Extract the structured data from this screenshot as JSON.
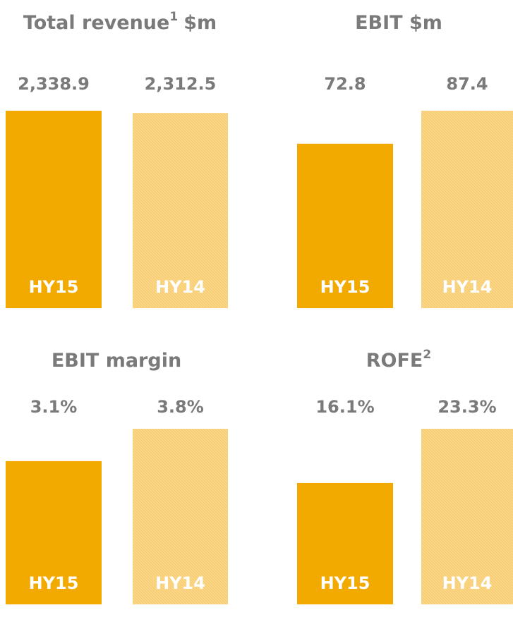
{
  "chart_data": [
    {
      "type": "bar",
      "title": "Total revenue",
      "title_superscript": "1",
      "title_suffix": "$m",
      "categories": [
        "HY15",
        "HY14"
      ],
      "values": [
        2338.9,
        2312.5
      ],
      "value_labels": [
        "2,338.9",
        "2,312.5"
      ],
      "colors": [
        "#f2a900",
        "#f9d68a"
      ]
    },
    {
      "type": "bar",
      "title": "EBIT $m",
      "categories": [
        "HY15",
        "HY14"
      ],
      "values": [
        72.8,
        87.4
      ],
      "colors": [
        "#f2a900",
        "#f9d68a"
      ]
    },
    {
      "type": "bar",
      "title": "EBIT margin",
      "categories": [
        "HY15",
        "HY14"
      ],
      "values": [
        3.1,
        3.8
      ],
      "value_labels": [
        "3.1%",
        "3.8%"
      ],
      "colors": [
        "#f2a900",
        "#f9d68a"
      ]
    },
    {
      "type": "bar",
      "title": "ROFE",
      "title_superscript": "2",
      "categories": [
        "HY15",
        "HY14"
      ],
      "values": [
        16.1,
        23.3
      ],
      "value_labels": [
        "16.1%",
        "23.3%"
      ],
      "colors": [
        "#f2a900",
        "#f9d68a"
      ]
    }
  ]
}
